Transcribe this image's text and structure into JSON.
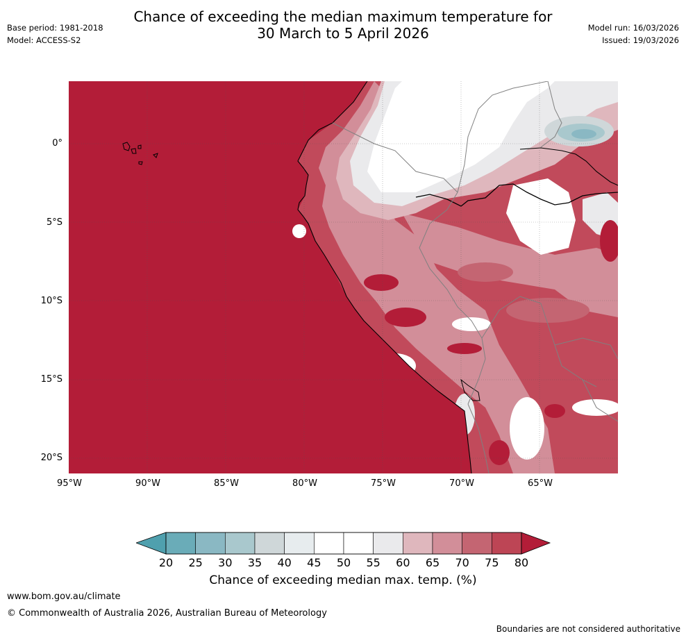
{
  "header": {
    "title_line1": "Chance of exceeding the median maximum temperature for",
    "title_line2": "30 March to 5 April 2026",
    "base_period": "Base period: 1981-2018",
    "model": "Model: ACCESS-S2",
    "model_run": "Model run: 16/03/2026",
    "issued": "Issued: 19/03/2026"
  },
  "map": {
    "region": "Western South America (Peru, Ecuador, Bolivia)",
    "latitude_labels": [
      "0°",
      "5°S",
      "10°S",
      "15°S",
      "20°S"
    ],
    "longitude_labels": [
      "95°W",
      "90°W",
      "85°W",
      "80°W",
      "75°W",
      "70°W",
      "65°W"
    ],
    "ocean_color": "#b31d38"
  },
  "colorbar": {
    "ticks": [
      "20",
      "25",
      "30",
      "35",
      "40",
      "45",
      "50",
      "55",
      "60",
      "65",
      "70",
      "75",
      "80"
    ],
    "colors": [
      "#6aacb8",
      "#8ab8c3",
      "#a9c8cd",
      "#cfd7d9",
      "#e7ecee",
      "#ffffff",
      "#ffffff",
      "#eaeaec",
      "#dfb7bd",
      "#d28e99",
      "#c46572",
      "#bd4555"
    ],
    "under_color": "#4fa0ae",
    "over_color": "#b31d38",
    "label": "Chance of exceeding median max. temp. (%)"
  },
  "footer": {
    "url": "www.bom.gov.au/climate",
    "copyright": "© Commonwealth of Australia 2026, Australian Bureau of Meteorology",
    "disclaimer": "Boundaries are not considered authoritative"
  }
}
